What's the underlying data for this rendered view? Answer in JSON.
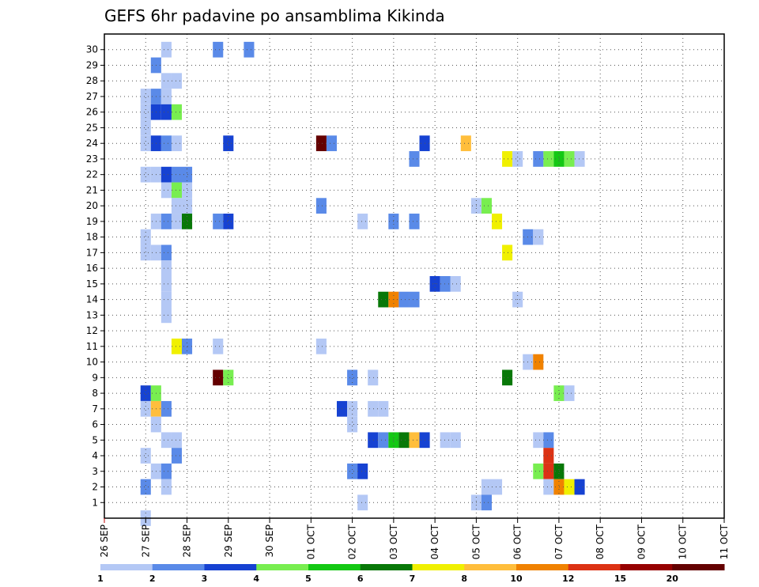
{
  "chart_data": {
    "type": "heatmap",
    "title": "GEFS 6hr padavine po ansamblima Kikinda",
    "xlabel": "",
    "ylabel": "",
    "x_tick_labels": [
      "26 SEP",
      "27 SEP",
      "28 SEP",
      "29 SEP",
      "30 SEP",
      "01 OCT",
      "02 OCT",
      "03 OCT",
      "04 OCT",
      "05 OCT",
      "06 OCT",
      "07 OCT",
      "08 OCT",
      "09 OCT",
      "10 OCT",
      "11 OCT"
    ],
    "y_tick_labels": [
      "1",
      "2",
      "3",
      "4",
      "5",
      "6",
      "7",
      "8",
      "9",
      "10",
      "11",
      "12",
      "13",
      "14",
      "15",
      "16",
      "17",
      "18",
      "19",
      "20",
      "21",
      "22",
      "23",
      "24",
      "25",
      "26",
      "27",
      "28",
      "29",
      "30"
    ],
    "x_range_steps": [
      0,
      60
    ],
    "y_range_members": [
      0,
      31
    ],
    "grid": true,
    "colorbar": {
      "labels": [
        "1",
        "2",
        "3",
        "4",
        "5",
        "6",
        "7",
        "8",
        "10",
        "12",
        "15",
        "20"
      ],
      "colors": [
        "#b4c8f5",
        "#5a8ae8",
        "#1642d2",
        "#78ee50",
        "#14c814",
        "#087808",
        "#f0f000",
        "#ffbe3c",
        "#f08200",
        "#dc3214",
        "#960000",
        "#640000"
      ],
      "placement": "bottom"
    },
    "units_note": "cells = [time step index (6h steps from 26 SEP 00z), ensemble member, precipitation class index 0-11]",
    "cells": [
      [
        5,
        30,
        0
      ],
      [
        10,
        30,
        1
      ],
      [
        13,
        30,
        1
      ],
      [
        4,
        29,
        1
      ],
      [
        5,
        28,
        0
      ],
      [
        6,
        28,
        0
      ],
      [
        3,
        27,
        0
      ],
      [
        4,
        27,
        1
      ],
      [
        5,
        27,
        0
      ],
      [
        3,
        26,
        0
      ],
      [
        4,
        26,
        2
      ],
      [
        5,
        26,
        2
      ],
      [
        6,
        26,
        3
      ],
      [
        3,
        25,
        0
      ],
      [
        3,
        24,
        0
      ],
      [
        4,
        24,
        2
      ],
      [
        5,
        24,
        1
      ],
      [
        6,
        24,
        0
      ],
      [
        11,
        24,
        2
      ],
      [
        20,
        24,
        11
      ],
      [
        21,
        24,
        1
      ],
      [
        30,
        24,
        2
      ],
      [
        34,
        24,
        7
      ],
      [
        29,
        23,
        1
      ],
      [
        38,
        23,
        6
      ],
      [
        39,
        23,
        0
      ],
      [
        41,
        23,
        1
      ],
      [
        42,
        23,
        3
      ],
      [
        43,
        23,
        4
      ],
      [
        44,
        23,
        3
      ],
      [
        45,
        23,
        0
      ],
      [
        3,
        22,
        0
      ],
      [
        4,
        22,
        0
      ],
      [
        5,
        22,
        2
      ],
      [
        6,
        22,
        1
      ],
      [
        7,
        22,
        1
      ],
      [
        5,
        21,
        0
      ],
      [
        6,
        21,
        3
      ],
      [
        7,
        21,
        0
      ],
      [
        6,
        20,
        0
      ],
      [
        7,
        20,
        0
      ],
      [
        20,
        20,
        1
      ],
      [
        35,
        20,
        0
      ],
      [
        36,
        20,
        3
      ],
      [
        4,
        19,
        0
      ],
      [
        5,
        19,
        1
      ],
      [
        6,
        19,
        0
      ],
      [
        7,
        19,
        5
      ],
      [
        10,
        19,
        1
      ],
      [
        11,
        19,
        2
      ],
      [
        24,
        19,
        0
      ],
      [
        27,
        19,
        1
      ],
      [
        29,
        19,
        1
      ],
      [
        37,
        19,
        6
      ],
      [
        3,
        18,
        0
      ],
      [
        40,
        18,
        1
      ],
      [
        41,
        18,
        0
      ],
      [
        3,
        17,
        0
      ],
      [
        4,
        17,
        0
      ],
      [
        5,
        17,
        1
      ],
      [
        38,
        17,
        6
      ],
      [
        5,
        16,
        0
      ],
      [
        5,
        15,
        0
      ],
      [
        31,
        15,
        2
      ],
      [
        32,
        15,
        1
      ],
      [
        33,
        15,
        0
      ],
      [
        5,
        14,
        0
      ],
      [
        26,
        14,
        5
      ],
      [
        27,
        14,
        8
      ],
      [
        28,
        14,
        1
      ],
      [
        29,
        14,
        1
      ],
      [
        39,
        14,
        0
      ],
      [
        5,
        13,
        0
      ],
      [
        6,
        11,
        6
      ],
      [
        7,
        11,
        1
      ],
      [
        10,
        11,
        0
      ],
      [
        20,
        11,
        0
      ],
      [
        40,
        10,
        0
      ],
      [
        41,
        10,
        8
      ],
      [
        10,
        9,
        11
      ],
      [
        11,
        9,
        3
      ],
      [
        23,
        9,
        1
      ],
      [
        25,
        9,
        0
      ],
      [
        38,
        9,
        5
      ],
      [
        3,
        8,
        2
      ],
      [
        4,
        8,
        3
      ],
      [
        43,
        8,
        3
      ],
      [
        44,
        8,
        0
      ],
      [
        3,
        7,
        0
      ],
      [
        4,
        7,
        7
      ],
      [
        5,
        7,
        1
      ],
      [
        22,
        7,
        2
      ],
      [
        23,
        7,
        0
      ],
      [
        25,
        7,
        0
      ],
      [
        26,
        7,
        0
      ],
      [
        4,
        6,
        0
      ],
      [
        23,
        6,
        0
      ],
      [
        5,
        5,
        0
      ],
      [
        6,
        5,
        0
      ],
      [
        25,
        5,
        2
      ],
      [
        26,
        5,
        1
      ],
      [
        27,
        5,
        4
      ],
      [
        28,
        5,
        5
      ],
      [
        29,
        5,
        7
      ],
      [
        30,
        5,
        2
      ],
      [
        32,
        5,
        0
      ],
      [
        33,
        5,
        0
      ],
      [
        41,
        5,
        0
      ],
      [
        42,
        5,
        1
      ],
      [
        3,
        4,
        0
      ],
      [
        6,
        4,
        1
      ],
      [
        42,
        4,
        9
      ],
      [
        4,
        3,
        0
      ],
      [
        5,
        3,
        1
      ],
      [
        23,
        3,
        1
      ],
      [
        24,
        3,
        2
      ],
      [
        41,
        3,
        3
      ],
      [
        42,
        3,
        9
      ],
      [
        43,
        3,
        5
      ],
      [
        3,
        2,
        1
      ],
      [
        5,
        2,
        0
      ],
      [
        36,
        2,
        0
      ],
      [
        37,
        2,
        0
      ],
      [
        42,
        2,
        0
      ],
      [
        43,
        2,
        8
      ],
      [
        44,
        2,
        6
      ],
      [
        45,
        2,
        2
      ],
      [
        24,
        1,
        0
      ],
      [
        35,
        1,
        0
      ],
      [
        36,
        1,
        1
      ],
      [
        3,
        0,
        0
      ]
    ]
  }
}
